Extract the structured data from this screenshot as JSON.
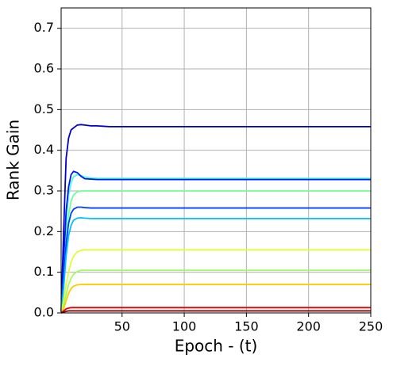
{
  "chart_data": {
    "type": "line",
    "xlabel": "Epoch - (t)",
    "ylabel": "Rank Gain",
    "x": [
      1,
      3,
      5,
      7,
      9,
      11,
      14,
      17,
      20,
      25,
      30,
      40,
      250
    ],
    "series": [
      {
        "color": "#0000cc",
        "values": [
          0,
          0.2,
          0.38,
          0.43,
          0.45,
          0.455,
          0.462,
          0.463,
          0.462,
          0.46,
          0.46,
          0.458,
          0.458
        ]
      },
      {
        "color": "#40ffe0",
        "values": [
          0,
          0.1,
          0.22,
          0.29,
          0.32,
          0.335,
          0.34,
          0.338,
          0.334,
          0.332,
          0.331,
          0.331,
          0.331
        ]
      },
      {
        "color": "#0018f0",
        "values": [
          0,
          0.12,
          0.25,
          0.31,
          0.34,
          0.348,
          0.345,
          0.336,
          0.33,
          0.329,
          0.328,
          0.328,
          0.328
        ]
      },
      {
        "color": "#70ff90",
        "values": [
          0,
          0.08,
          0.18,
          0.24,
          0.275,
          0.29,
          0.298,
          0.3,
          0.3,
          0.3,
          0.3,
          0.3,
          0.3
        ]
      },
      {
        "color": "#0040ff",
        "values": [
          0,
          0.08,
          0.17,
          0.22,
          0.245,
          0.255,
          0.26,
          0.26,
          0.259,
          0.258,
          0.258,
          0.258,
          0.258
        ]
      },
      {
        "color": "#00c0ff",
        "values": [
          0,
          0.06,
          0.14,
          0.19,
          0.215,
          0.228,
          0.233,
          0.234,
          0.233,
          0.232,
          0.232,
          0.232,
          0.232
        ]
      },
      {
        "color": "#e0ff30",
        "values": [
          0,
          0.03,
          0.07,
          0.1,
          0.125,
          0.14,
          0.15,
          0.154,
          0.155,
          0.155,
          0.155,
          0.155,
          0.155
        ]
      },
      {
        "color": "#a0ff60",
        "values": [
          0,
          0.02,
          0.045,
          0.07,
          0.085,
          0.095,
          0.102,
          0.105,
          0.105,
          0.105,
          0.105,
          0.105,
          0.105
        ]
      },
      {
        "color": "#ffcc00",
        "values": [
          0,
          0.01,
          0.03,
          0.048,
          0.06,
          0.066,
          0.069,
          0.07,
          0.07,
          0.07,
          0.07,
          0.07,
          0.07
        ]
      },
      {
        "color": "#dd0000",
        "values": [
          0,
          0.005,
          0.01,
          0.012,
          0.013,
          0.013,
          0.013,
          0.013,
          0.013,
          0.013,
          0.013,
          0.013,
          0.013
        ]
      },
      {
        "color": "#800000",
        "values": [
          0,
          0.002,
          0.004,
          0.005,
          0.005,
          0.005,
          0.005,
          0.005,
          0.005,
          0.005,
          0.005,
          0.005,
          0.005
        ]
      }
    ],
    "xlim": [
      1,
      250
    ],
    "ylim": [
      0,
      0.75
    ],
    "xticks": [
      50,
      100,
      150,
      200,
      250
    ],
    "yticks": [
      {
        "value": 0,
        "label": "0.0"
      },
      0.1,
      0.2,
      0.3,
      0.4,
      0.5,
      0.6,
      0.7
    ],
    "grid": true
  }
}
